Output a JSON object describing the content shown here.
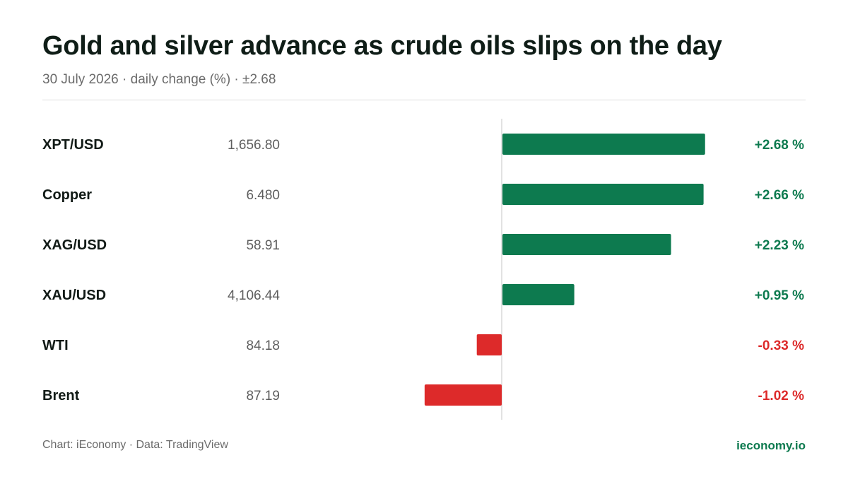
{
  "header": {
    "title": "Gold and silver advance as crude oils slips on the day",
    "subtitle": "30 July 2026 · daily change (%) · ±2.68"
  },
  "footer": {
    "source": "Chart: iEconomy · Data: TradingView",
    "brand": "ieconomy.io"
  },
  "colors": {
    "positive": "#0d7a4f",
    "negative": "#dd2a2a",
    "axis": "#d9d9d9",
    "label": "#111a16",
    "price": "#5e5e5e"
  },
  "chart_data": {
    "type": "bar",
    "orientation": "horizontal",
    "categories": [
      "XPT/USD",
      "Copper",
      "XAG/USD",
      "XAU/USD",
      "WTI",
      "Brent"
    ],
    "prices": [
      "1,656.80",
      "6.480",
      "58.91",
      "4,106.44",
      "84.18",
      "87.19"
    ],
    "values": [
      2.68,
      2.66,
      2.23,
      0.95,
      -0.33,
      -1.02
    ],
    "value_labels": [
      "+2.68 %",
      "+2.66 %",
      "+2.23 %",
      "+0.95 %",
      "-0.33 %",
      "-1.02 %"
    ],
    "xlim": [
      -2.68,
      2.68
    ],
    "grid": false,
    "legend": "none"
  }
}
